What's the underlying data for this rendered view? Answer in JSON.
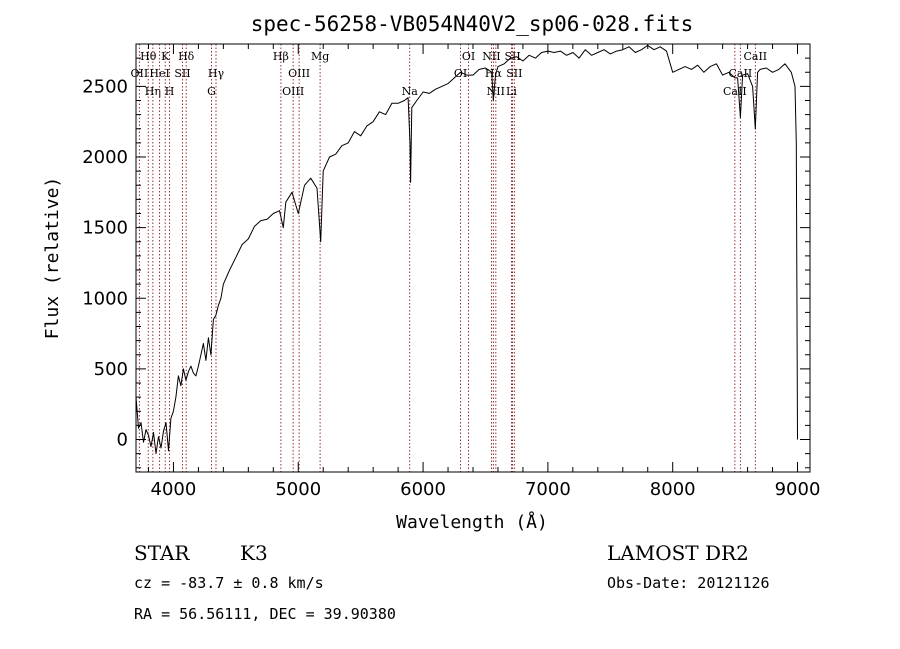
{
  "chart_data": {
    "type": "line",
    "title": "spec-56258-VB054N40V2_sp06-028.fits",
    "xlabel": "Wavelength (Å)",
    "ylabel": "Flux (relative)",
    "xlim": [
      3700,
      9100
    ],
    "ylim": [
      -230,
      2800
    ],
    "x_ticks": [
      4000,
      5000,
      6000,
      7000,
      8000,
      9000
    ],
    "y_ticks": [
      0,
      500,
      1000,
      1500,
      2000,
      2500
    ],
    "grid": false,
    "series": [
      {
        "x": [
          3700,
          3720,
          3740,
          3760,
          3780,
          3800,
          3820,
          3840,
          3860,
          3880,
          3900,
          3920,
          3940,
          3960,
          3980,
          4000,
          4020,
          4040,
          4060,
          4080,
          4100,
          4120,
          4140,
          4160,
          4180,
          4200,
          4220,
          4240,
          4260,
          4280,
          4300,
          4320,
          4340,
          4360,
          4380,
          4400,
          4450,
          4500,
          4550,
          4600,
          4650,
          4700,
          4750,
          4800,
          4850,
          4880,
          4900,
          4950,
          5000,
          5050,
          5100,
          5150,
          5180,
          5200,
          5250,
          5300,
          5350,
          5400,
          5450,
          5500,
          5550,
          5600,
          5650,
          5700,
          5750,
          5800,
          5850,
          5880,
          5895,
          5900,
          5910,
          5950,
          6000,
          6050,
          6100,
          6150,
          6200,
          6250,
          6300,
          6350,
          6400,
          6450,
          6500,
          6550,
          6563,
          6580,
          6600,
          6650,
          6700,
          6750,
          6800,
          6850,
          6900,
          6950,
          7000,
          7050,
          7100,
          7150,
          7200,
          7250,
          7300,
          7350,
          7400,
          7450,
          7500,
          7550,
          7600,
          7650,
          7700,
          7750,
          7800,
          7850,
          7900,
          7950,
          8000,
          8050,
          8100,
          8150,
          8200,
          8250,
          8300,
          8350,
          8400,
          8450,
          8498,
          8520,
          8542,
          8560,
          8600,
          8640,
          8662,
          8680,
          8700,
          8750,
          8800,
          8850,
          8900,
          8950,
          8980,
          8990,
          9000
        ],
        "values": [
          300,
          80,
          120,
          -20,
          70,
          30,
          -50,
          50,
          -100,
          20,
          -60,
          60,
          120,
          -80,
          150,
          200,
          300,
          450,
          380,
          500,
          420,
          480,
          520,
          470,
          450,
          520,
          600,
          680,
          560,
          720,
          600,
          850,
          880,
          950,
          1000,
          1100,
          1200,
          1290,
          1380,
          1420,
          1510,
          1550,
          1560,
          1600,
          1620,
          1500,
          1680,
          1750,
          1600,
          1800,
          1850,
          1780,
          1400,
          1900,
          2000,
          2020,
          2080,
          2100,
          2180,
          2150,
          2220,
          2250,
          2320,
          2300,
          2380,
          2380,
          2400,
          2420,
          2100,
          1820,
          2350,
          2400,
          2460,
          2450,
          2480,
          2500,
          2520,
          2560,
          2600,
          2580,
          2580,
          2620,
          2630,
          2600,
          2400,
          2580,
          2640,
          2660,
          2700,
          2710,
          2680,
          2720,
          2700,
          2740,
          2750,
          2740,
          2750,
          2720,
          2740,
          2700,
          2760,
          2720,
          2740,
          2760,
          2730,
          2750,
          2760,
          2780,
          2740,
          2760,
          2790,
          2760,
          2780,
          2750,
          2600,
          2620,
          2640,
          2620,
          2650,
          2600,
          2640,
          2660,
          2580,
          2600,
          2560,
          2560,
          2280,
          2580,
          2590,
          2500,
          2200,
          2600,
          2620,
          2630,
          2600,
          2620,
          2660,
          2600,
          2500,
          2100,
          0
        ]
      }
    ],
    "line_markers": [
      {
        "label": "Hθ",
        "x": 3798,
        "row": 1
      },
      {
        "label": "OII",
        "x": 3727,
        "row": 2
      },
      {
        "label": "Hη",
        "x": 3835,
        "row": 3
      },
      {
        "label": "HeI",
        "x": 3889,
        "row": 2
      },
      {
        "label": "K",
        "x": 3934,
        "row": 1
      },
      {
        "label": "H",
        "x": 3969,
        "row": 3
      },
      {
        "label": "SII",
        "x": 4072,
        "row": 2
      },
      {
        "label": "Hδ",
        "x": 4102,
        "row": 1
      },
      {
        "label": "Hγ",
        "x": 4341,
        "row": 2
      },
      {
        "label": "G",
        "x": 4305,
        "row": 3
      },
      {
        "label": "Hβ",
        "x": 4861,
        "row": 1
      },
      {
        "label": "OIII",
        "x": 5007,
        "row": 2
      },
      {
        "label": "OIII",
        "x": 4959,
        "row": 3
      },
      {
        "label": "Mg",
        "x": 5175,
        "row": 1
      },
      {
        "label": "Na",
        "x": 5893,
        "row": 3
      },
      {
        "label": "OI",
        "x": 6364,
        "row": 1
      },
      {
        "label": "OI",
        "x": 6300,
        "row": 2
      },
      {
        "label": "NII",
        "x": 6548,
        "row": 1
      },
      {
        "label": "Hα",
        "x": 6563,
        "row": 2
      },
      {
        "label": "NII",
        "x": 6583,
        "row": 3
      },
      {
        "label": "SII",
        "x": 6717,
        "row": 1
      },
      {
        "label": "SII",
        "x": 6731,
        "row": 2
      },
      {
        "label": "Li",
        "x": 6708,
        "row": 3
      },
      {
        "label": "CaII",
        "x": 8662,
        "row": 1
      },
      {
        "label": "CaII",
        "x": 8542,
        "row": 2
      },
      {
        "label": "CaII",
        "x": 8498,
        "row": 3
      }
    ]
  },
  "info": {
    "class_label": "STAR",
    "subclass": "K3",
    "survey": "LAMOST DR2",
    "cz": "cz = -83.7 ± 0.8 km/s",
    "obs_date": "Obs-Date: 20121126",
    "radec": "RA =  56.56111, DEC =  39.90380"
  }
}
